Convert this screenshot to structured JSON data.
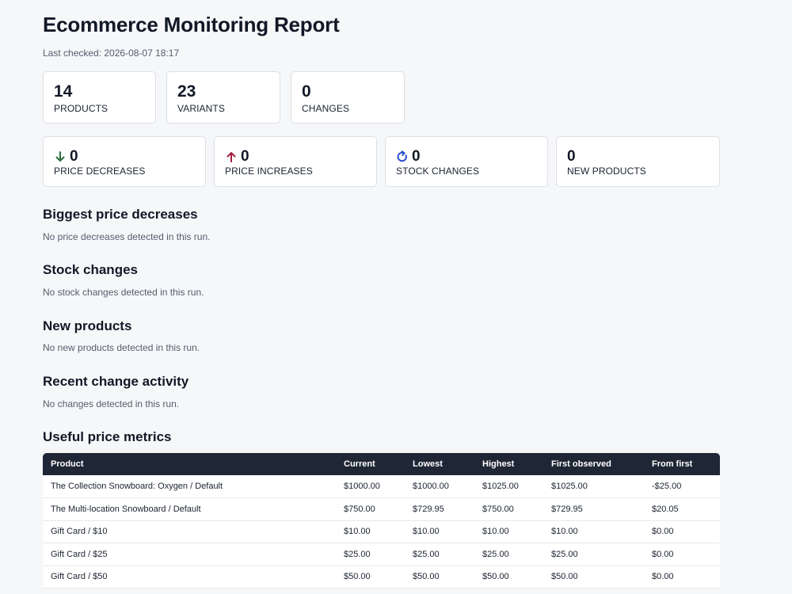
{
  "header": {
    "title": "Ecommerce Monitoring Report",
    "last_checked": "Last checked: 2026-08-07 18:17"
  },
  "summary": [
    {
      "value": "14",
      "label": "PRODUCTS"
    },
    {
      "value": "23",
      "label": "VARIANTS"
    },
    {
      "value": "0",
      "label": "CHANGES"
    }
  ],
  "changes": [
    {
      "value": "0",
      "label": "PRICE DECREASES",
      "icon": "arrow-down-icon",
      "color": "#2a6e3b"
    },
    {
      "value": "0",
      "label": "PRICE INCREASES",
      "icon": "arrow-up-icon",
      "color": "#a0203c"
    },
    {
      "value": "0",
      "label": "STOCK CHANGES",
      "icon": "refresh-icon",
      "color": "#2c4fd3"
    },
    {
      "value": "0",
      "label": "NEW PRODUCTS",
      "icon": "",
      "color": "#121826"
    }
  ],
  "sections": [
    {
      "title": "Biggest price decreases",
      "note": "No price decreases detected in this run."
    },
    {
      "title": "Stock changes",
      "note": "No stock changes detected in this run."
    },
    {
      "title": "New products",
      "note": "No new products detected in this run."
    },
    {
      "title": "Recent change activity",
      "note": "No changes detected in this run."
    }
  ],
  "metrics": {
    "title": "Useful price metrics",
    "columns": [
      "Product",
      "Current",
      "Lowest",
      "Highest",
      "First observed",
      "From first"
    ],
    "rows": [
      [
        "The Collection Snowboard: Oxygen / Default",
        "$1000.00",
        "$1000.00",
        "$1025.00",
        "$1025.00",
        "-$25.00"
      ],
      [
        "The Multi-location Snowboard / Default",
        "$750.00",
        "$729.95",
        "$750.00",
        "$729.95",
        "$20.05"
      ],
      [
        "Gift Card / $10",
        "$10.00",
        "$10.00",
        "$10.00",
        "$10.00",
        "$0.00"
      ],
      [
        "Gift Card / $25",
        "$25.00",
        "$25.00",
        "$25.00",
        "$25.00",
        "$0.00"
      ],
      [
        "Gift Card / $50",
        "$50.00",
        "$50.00",
        "$50.00",
        "$50.00",
        "$0.00"
      ]
    ]
  }
}
